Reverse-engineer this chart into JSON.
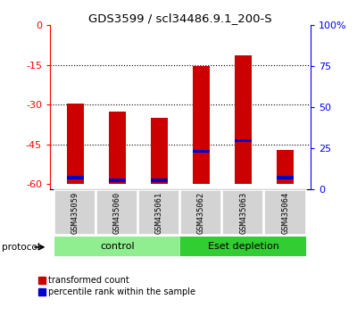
{
  "title": "GDS3599 / scl34486.9.1_200-S",
  "samples": [
    "GSM435059",
    "GSM435060",
    "GSM435061",
    "GSM435062",
    "GSM435063",
    "GSM435064"
  ],
  "red_bar_tops": [
    -29.5,
    -32.5,
    -35.0,
    -15.5,
    -11.5,
    -47.0
  ],
  "red_bar_bottom": -60,
  "blue_marker_pos": [
    -57.5,
    -58.5,
    -58.5,
    -47.5,
    -43.5,
    -57.5
  ],
  "ylim_left": [
    -62,
    0
  ],
  "ylim_right": [
    0,
    100
  ],
  "left_yticks": [
    0,
    -15,
    -30,
    -45,
    -60
  ],
  "right_yticks": [
    0,
    25,
    50,
    75,
    100
  ],
  "right_yticklabels": [
    "0",
    "25",
    "50",
    "75",
    "100%"
  ],
  "groups": [
    {
      "label": "control",
      "samples": [
        0,
        1,
        2
      ],
      "color": "#90EE90"
    },
    {
      "label": "Eset depletion",
      "samples": [
        3,
        4,
        5
      ],
      "color": "#32CD32"
    }
  ],
  "protocol_label": "protocol",
  "legend_red_label": "transformed count",
  "legend_blue_label": "percentile rank within the sample",
  "bar_color": "#CC0000",
  "blue_color": "#0000CC",
  "tick_area_bg": "#D3D3D3",
  "bar_width": 0.4
}
